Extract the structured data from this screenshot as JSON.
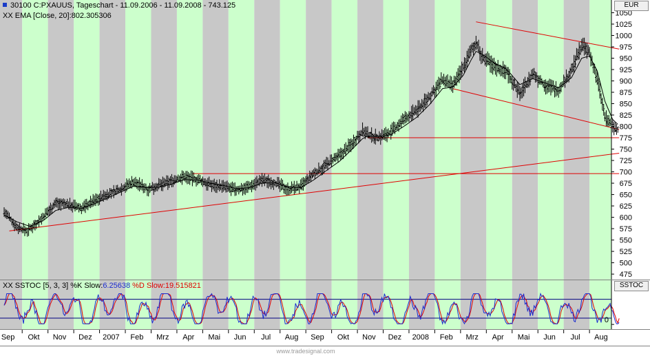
{
  "header": {
    "instrument": "30100  C:PXAUUS, Tageschart - 11.09.2006 - 11.09.2008 - 743.125",
    "ema_label": "XX EMA [Close, 20]:802.305306",
    "stoch_label_prefix": "XX SSTOC [5, 3, 3] %K Slow:",
    "stoch_k_value": "6.25638",
    "stoch_d_label": "%D Slow:",
    "stoch_d_value": "19.515821"
  },
  "axes": {
    "currency": "EUR",
    "stoch_panel_label": "SSTOC",
    "stoch_tick": "0"
  },
  "watermark": "www.tradesignal.com",
  "colors": {
    "band_green": "#ccffcc",
    "band_gray": "#c8c8c8",
    "price": "#000000",
    "trendline": "#e00000",
    "k_line": "#1a2ad0",
    "d_line": "#e00000",
    "level_line": "#000080"
  },
  "chart_data": [
    {
      "type": "line",
      "title": "30100  C:PXAUUS, Tageschart - 11.09.2006 - 11.09.2008 - 743.125",
      "ylabel": "EUR",
      "ylim": [
        463,
        1078
      ],
      "yticks": [
        475,
        500,
        525,
        550,
        575,
        600,
        625,
        650,
        675,
        700,
        725,
        750,
        775,
        800,
        825,
        850,
        875,
        900,
        925,
        950,
        975,
        1000,
        1025,
        1050
      ],
      "x_months": [
        "Sep",
        "Okt",
        "Nov",
        "Dez",
        "2007",
        "Feb",
        "Mrz",
        "Apr",
        "Mai",
        "Jun",
        "Jul",
        "Aug",
        "Sep",
        "Okt",
        "Nov",
        "Dez",
        "2008",
        "Feb",
        "Mrz",
        "Apr",
        "Mai",
        "Jun",
        "Jul",
        "Aug"
      ],
      "series": [
        {
          "name": "Price (close path)",
          "t": [
            0,
            0.5,
            0.9,
            1.5,
            2,
            2.5,
            3,
            3.5,
            4,
            4.5,
            5,
            5.6,
            6,
            6.5,
            7,
            7.5,
            8,
            8.5,
            9,
            9.5,
            10,
            10.5,
            11,
            11.5,
            12,
            12.5,
            13,
            13.5,
            13.9,
            14.1,
            14.5,
            15,
            15.5,
            16,
            16.5,
            17,
            17.4,
            17.8,
            18.1,
            18.3,
            18.5,
            19,
            19.5,
            20,
            20.5,
            21,
            21.5,
            22,
            22.4,
            22.7,
            23,
            23.3,
            23.6,
            23.85
          ],
          "values": [
            612,
            578,
            570,
            600,
            632,
            628,
            620,
            637,
            650,
            662,
            678,
            662,
            670,
            680,
            690,
            682,
            672,
            667,
            660,
            668,
            682,
            676,
            662,
            667,
            695,
            716,
            735,
            764,
            790,
            782,
            775,
            787,
            815,
            835,
            865,
            902,
            888,
            930,
            965,
            985,
            955,
            932,
            920,
            872,
            915,
            890,
            880,
            922,
            980,
            960,
            905,
            820,
            800,
            790
          ]
        },
        {
          "name": "EMA [Close, 20]",
          "t": [
            0,
            0.5,
            1,
            1.5,
            2,
            2.5,
            3,
            3.5,
            4,
            4.5,
            5,
            5.6,
            6,
            6.5,
            7,
            7.5,
            8,
            8.5,
            9,
            9.5,
            10,
            10.5,
            11,
            11.5,
            12,
            12.5,
            13,
            13.5,
            13.9,
            14.1,
            14.5,
            15,
            15.5,
            16,
            16.5,
            17,
            17.4,
            17.8,
            18.1,
            18.3,
            18.5,
            19,
            19.5,
            20,
            20.5,
            21,
            21.5,
            22,
            22.4,
            22.7,
            23,
            23.3,
            23.6,
            23.85
          ],
          "values": [
            605,
            590,
            580,
            592,
            615,
            622,
            620,
            630,
            642,
            655,
            668,
            665,
            666,
            673,
            683,
            682,
            675,
            670,
            663,
            665,
            675,
            676,
            667,
            665,
            682,
            703,
            723,
            750,
            773,
            779,
            777,
            782,
            800,
            820,
            848,
            883,
            887,
            912,
            945,
            965,
            960,
            940,
            925,
            892,
            905,
            895,
            885,
            907,
            950,
            955,
            922,
            855,
            815,
            802
          ]
        },
        {
          "name": "Trendlines",
          "segments": [
            {
              "t": [
                0.2,
                23.85
              ],
              "values": [
                570,
                741
              ]
            },
            {
              "t": [
                7.3,
                23.85
              ],
              "values": [
                696,
                696
              ]
            },
            {
              "t": [
                14.1,
                23.85
              ],
              "values": [
                775,
                775
              ]
            },
            {
              "t": [
                17.4,
                23.85
              ],
              "values": [
                883,
                793
              ]
            },
            {
              "t": [
                18.3,
                23.85
              ],
              "values": [
                1030,
                970
              ]
            }
          ]
        }
      ]
    },
    {
      "type": "line",
      "title": "XX SSTOC [5, 3, 3] %K Slow:6.25638 %D Slow:19.515821",
      "ylim": [
        -15,
        110
      ],
      "yticks": [
        0
      ],
      "levels": [
        20,
        80
      ],
      "series": [
        {
          "name": "%K Slow",
          "last": 6.25638
        },
        {
          "name": "%D Slow",
          "last": 19.515821
        }
      ]
    }
  ]
}
